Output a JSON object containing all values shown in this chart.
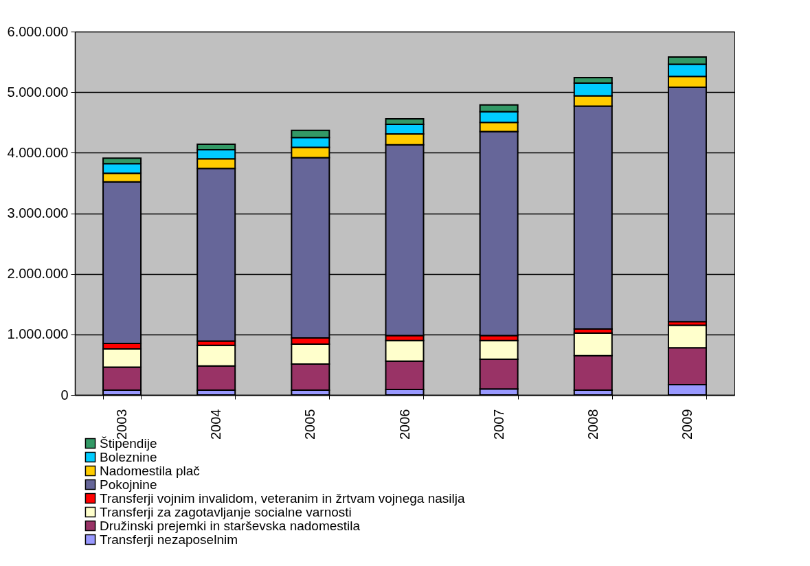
{
  "chart_data": {
    "type": "bar",
    "stacked": true,
    "categories": [
      "2003",
      "2004",
      "2005",
      "2006",
      "2007",
      "2008",
      "2009"
    ],
    "series": [
      {
        "name": "Transferji nezaposelnim",
        "color": "#9999ff",
        "values": [
          80000,
          80000,
          80000,
          90000,
          100000,
          80000,
          170000
        ]
      },
      {
        "name": "Družinski prejemki in starševska nadomestila",
        "color": "#993366",
        "values": [
          380000,
          400000,
          430000,
          470000,
          490000,
          570000,
          610000
        ]
      },
      {
        "name": "Transferji za zagotavljanje socialne varnosti",
        "color": "#ffffcc",
        "values": [
          300000,
          340000,
          330000,
          340000,
          310000,
          370000,
          370000
        ]
      },
      {
        "name": "Transferji vojnim invalidom, veteranim in žrtvam vojnega nasilja",
        "color": "#ff0000",
        "values": [
          90000,
          70000,
          100000,
          80000,
          80000,
          70000,
          60000
        ]
      },
      {
        "name": "Pokojnine",
        "color": "#666699",
        "values": [
          2670000,
          2850000,
          2980000,
          3150000,
          3370000,
          3680000,
          3870000
        ]
      },
      {
        "name": "Nadomestila plač",
        "color": "#ffcc00",
        "values": [
          140000,
          160000,
          170000,
          180000,
          150000,
          170000,
          180000
        ]
      },
      {
        "name": "Boleznine",
        "color": "#00ccff",
        "values": [
          160000,
          150000,
          160000,
          160000,
          180000,
          210000,
          200000
        ]
      },
      {
        "name": "Štipendije",
        "color": "#339966",
        "values": [
          90000,
          90000,
          120000,
          90000,
          110000,
          90000,
          120000
        ]
      }
    ],
    "ylim": [
      0,
      6000000
    ],
    "yticks": [
      {
        "value": 0,
        "label": "0"
      },
      {
        "value": 1000000,
        "label": "1.000.000"
      },
      {
        "value": 2000000,
        "label": "2.000.000"
      },
      {
        "value": 3000000,
        "label": "3.000.000"
      },
      {
        "value": 4000000,
        "label": "4.000.000"
      },
      {
        "value": 5000000,
        "label": "5.000.000"
      },
      {
        "value": 6000000,
        "label": "6.000.000"
      }
    ],
    "grid": "y",
    "legend": "bottom"
  }
}
